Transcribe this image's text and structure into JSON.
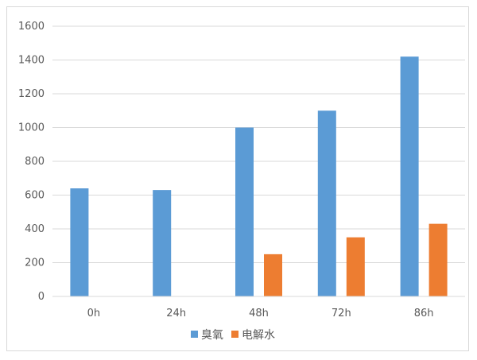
{
  "chart_data": {
    "type": "bar",
    "categories": [
      "0h",
      "24h",
      "48h",
      "72h",
      "86h"
    ],
    "series": [
      {
        "name": "臭氧",
        "color": "#5b9bd5",
        "values": [
          640,
          630,
          1000,
          1100,
          1420
        ]
      },
      {
        "name": "电解水",
        "color": "#ed7d31",
        "values": [
          0,
          0,
          250,
          350,
          430
        ]
      }
    ],
    "ylim": [
      0,
      1600
    ],
    "yticks": [
      0,
      200,
      400,
      600,
      800,
      1000,
      1200,
      1400,
      1600
    ],
    "grid": true,
    "legend_position": "bottom",
    "title": "",
    "xlabel": "",
    "ylabel": ""
  }
}
